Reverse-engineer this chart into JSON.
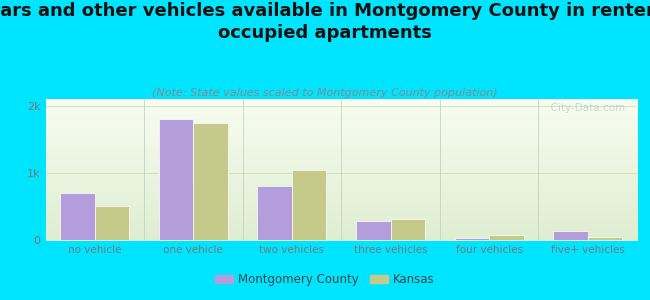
{
  "title": "Cars and other vehicles available in Montgomery County in renter-\noccupied apartments",
  "subtitle": "(Note: State values scaled to Montgomery County population)",
  "categories": [
    "no vehicle",
    "one vehicle",
    "two vehicles",
    "three vehicles",
    "four vehicles",
    "five+ vehicles"
  ],
  "montgomery_values": [
    700,
    1800,
    800,
    280,
    30,
    130
  ],
  "kansas_values": [
    500,
    1750,
    1050,
    310,
    80,
    40
  ],
  "montgomery_color": "#b39ddb",
  "kansas_color": "#c5c98a",
  "background_outer": "#00e5ff",
  "ylim": [
    0,
    2100
  ],
  "bar_width": 0.35,
  "title_fontsize": 13,
  "subtitle_fontsize": 8,
  "tick_label_color": "#777777",
  "watermark": "  City-Data.com",
  "legend_montgomery": "Montgomery County",
  "legend_kansas": "Kansas"
}
